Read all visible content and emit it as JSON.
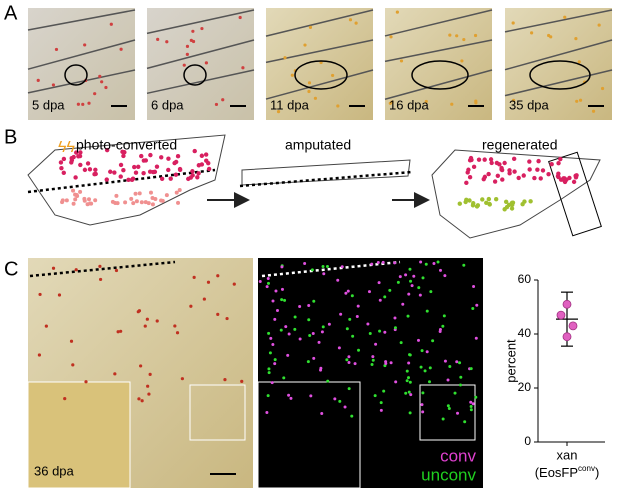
{
  "panels": {
    "A": {
      "label": "A",
      "timepoints": [
        "5 dpa",
        "6 dpa",
        "11 dpa",
        "16 dpa",
        "35 dpa"
      ]
    },
    "B": {
      "label": "B",
      "stages": [
        "photo-converted",
        "amputated",
        "regenerated"
      ]
    },
    "C": {
      "label": "C",
      "timepoint": "36 dpa",
      "channels": [
        "conv",
        "unconv"
      ]
    }
  },
  "chart_data": {
    "type": "scatter",
    "ylabel": "percent",
    "xlabel": {
      "name": "xan",
      "detail": [
        "(EosFP",
        "conv",
        ")"
      ]
    },
    "values": [
      51,
      47,
      43,
      39
    ],
    "mean": 45.5,
    "error": 10,
    "ylim": [
      0,
      60
    ],
    "yticks": [
      0,
      20,
      40,
      60
    ],
    "color": "#e060c0"
  }
}
